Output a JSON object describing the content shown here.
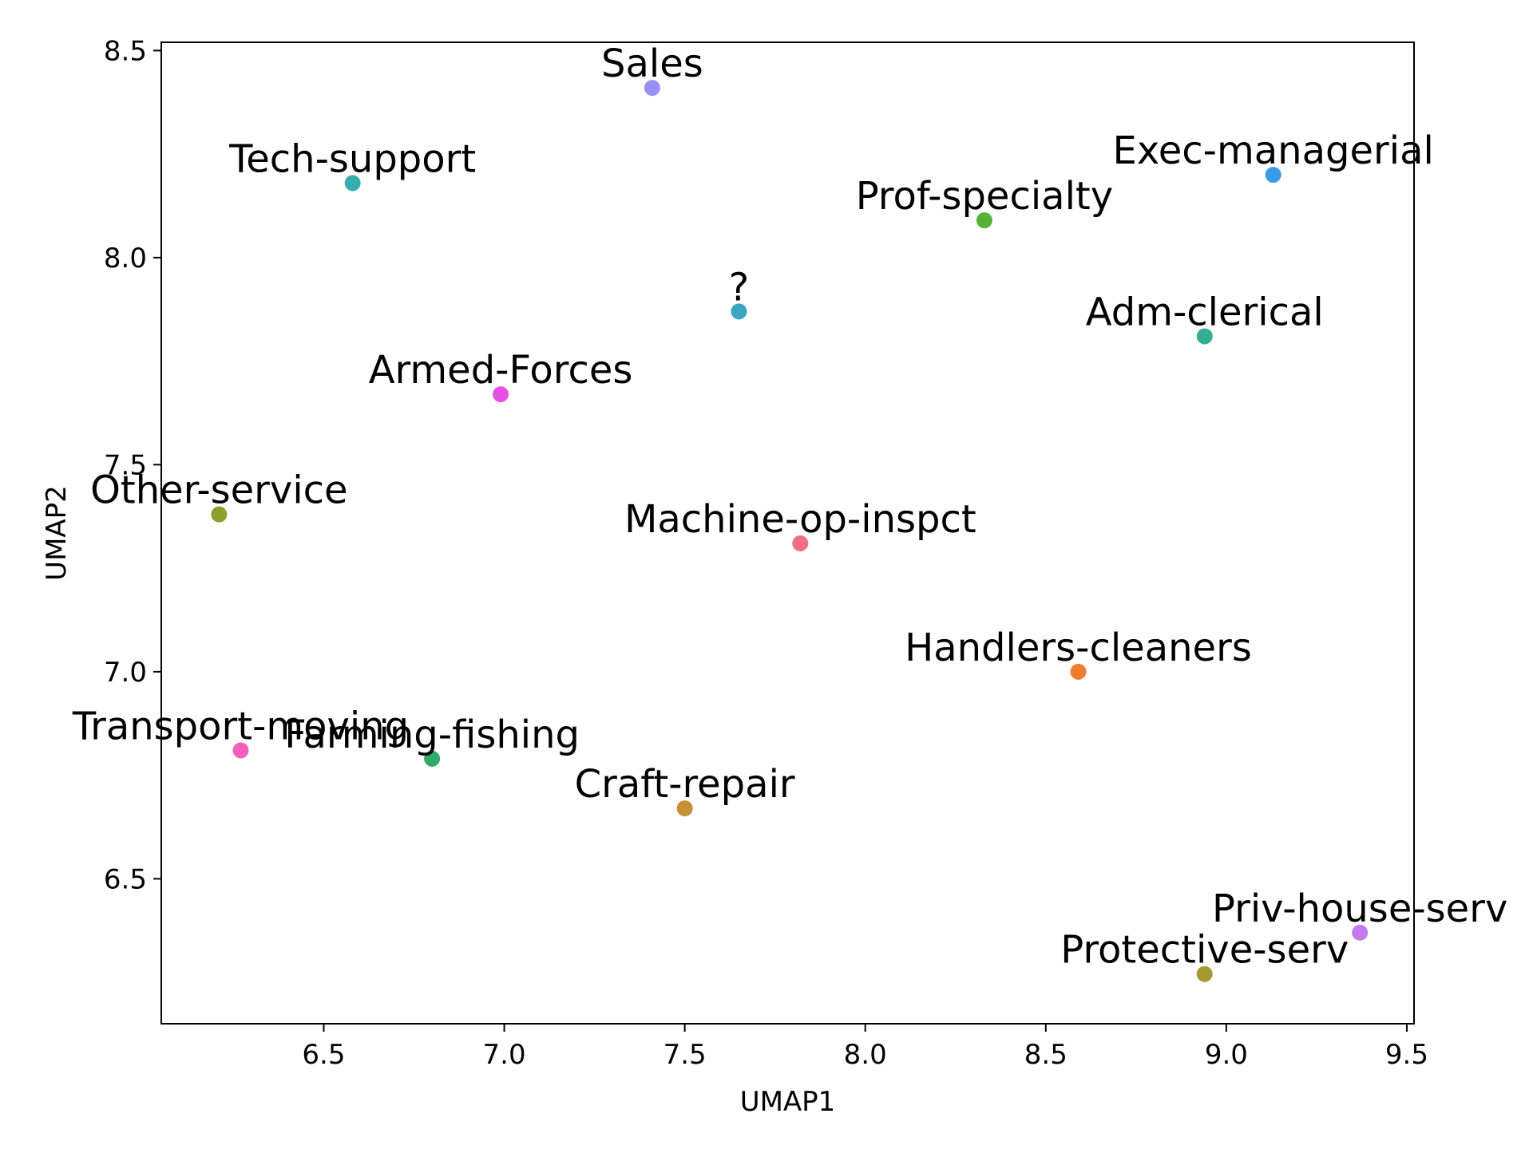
{
  "chart_data": {
    "type": "scatter",
    "title": "",
    "xlabel": "UMAP1",
    "ylabel": "UMAP2",
    "xlim": [
      6.05,
      9.52
    ],
    "ylim": [
      6.15,
      8.52
    ],
    "xticks": [
      "6.5",
      "7.0",
      "7.5",
      "8.0",
      "8.5",
      "9.0",
      "9.5"
    ],
    "yticks": [
      "6.5",
      "7.0",
      "7.5",
      "8.0",
      "8.5"
    ],
    "grid": false,
    "legend": "none",
    "points": [
      {
        "label": "Sales",
        "x": 7.41,
        "y": 8.41,
        "color": "#9a8ff5"
      },
      {
        "label": "Tech-support",
        "x": 6.58,
        "y": 8.18,
        "color": "#37aeae"
      },
      {
        "label": "Exec-managerial",
        "x": 9.13,
        "y": 8.2,
        "color": "#3b9be8"
      },
      {
        "label": "Prof-specialty",
        "x": 8.33,
        "y": 8.09,
        "color": "#55b235"
      },
      {
        "label": "?",
        "x": 7.65,
        "y": 7.87,
        "color": "#39a6c2"
      },
      {
        "label": "Adm-clerical",
        "x": 8.94,
        "y": 7.81,
        "color": "#31ae94"
      },
      {
        "label": "Armed-Forces",
        "x": 6.99,
        "y": 7.67,
        "color": "#e84fe3"
      },
      {
        "label": "Other-service",
        "x": 6.21,
        "y": 7.38,
        "color": "#8ca02c"
      },
      {
        "label": "Machine-op-inspct",
        "x": 7.82,
        "y": 7.31,
        "color": "#f56c85"
      },
      {
        "label": "Handlers-cleaners",
        "x": 8.59,
        "y": 7.0,
        "color": "#f07c30"
      },
      {
        "label": "Transport-moving",
        "x": 6.27,
        "y": 6.81,
        "color": "#f45fbd"
      },
      {
        "label": "Farming-fishing",
        "x": 6.8,
        "y": 6.79,
        "color": "#31ac6a"
      },
      {
        "label": "Craft-repair",
        "x": 7.5,
        "y": 6.67,
        "color": "#c69034"
      },
      {
        "label": "Priv-house-serv",
        "x": 9.37,
        "y": 6.37,
        "color": "#c57af0"
      },
      {
        "label": "Protective-serv",
        "x": 8.94,
        "y": 6.27,
        "color": "#a39b30"
      }
    ]
  }
}
